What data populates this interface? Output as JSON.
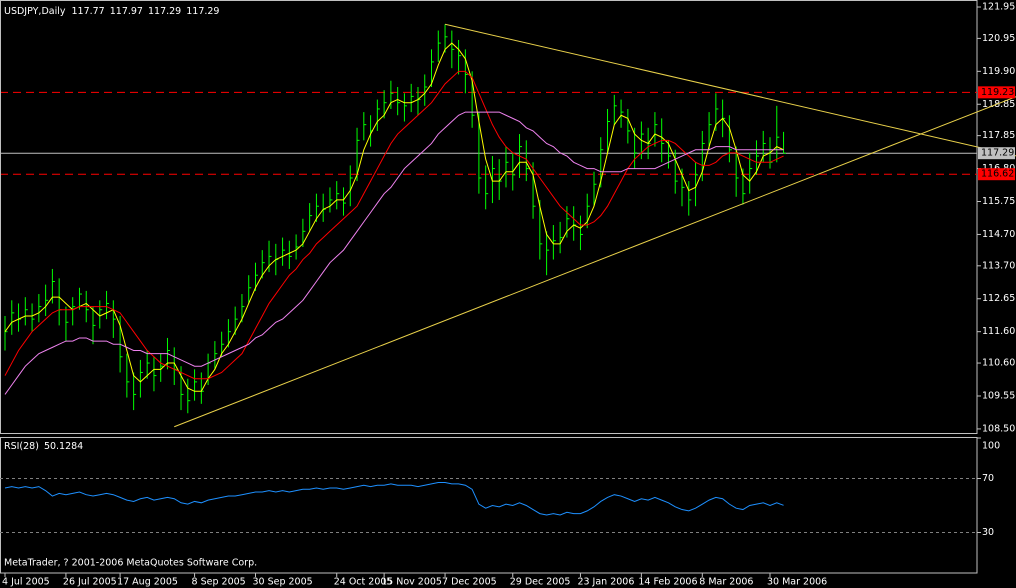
{
  "chart_data": {
    "type": "ohlc",
    "symbol": "USDJPY,Daily",
    "last_open": 117.77,
    "categories": [
      "4 Jul 2005",
      null,
      null,
      null,
      null,
      null,
      null,
      null,
      null,
      "26 Jul 2005",
      null,
      null,
      null,
      null,
      null,
      null,
      null,
      "17 Aug 2005",
      null,
      null,
      null,
      null,
      null,
      null,
      null,
      null,
      null,
      null,
      "8 Sep 2005",
      null,
      null,
      null,
      null,
      null,
      null,
      null,
      null,
      "30 Sep 2005",
      null,
      null,
      null,
      null,
      null,
      null,
      null,
      null,
      null,
      null,
      null,
      "24 Oct 2005",
      null,
      null,
      null,
      null,
      null,
      null,
      "15 Nov 2005",
      null,
      null,
      null,
      null,
      null,
      null,
      null,
      null,
      "7 Dec 2005",
      null,
      null,
      null,
      null,
      null,
      null,
      null,
      null,
      null,
      "29 Dec 2005",
      null,
      null,
      null,
      null,
      null,
      null,
      null,
      null,
      null,
      "23 Jan 2006",
      null,
      null,
      null,
      null,
      null,
      null,
      null,
      null,
      "14 Feb 2006",
      null,
      null,
      null,
      null,
      null,
      null,
      null,
      null,
      "8 Mar 2006",
      null,
      null,
      null,
      null,
      null,
      null,
      null,
      null,
      null,
      "30 Mar 2006",
      null,
      null
    ],
    "high": [
      112.1,
      112.6,
      112.5,
      112.7,
      112.5,
      112.8,
      113.1,
      113.6,
      113.3,
      112.4,
      112.7,
      113.0,
      112.9,
      112.4,
      112.6,
      112.9,
      112.6,
      112.1,
      110.9,
      110.3,
      110.7,
      111.0,
      110.8,
      110.9,
      111.4,
      111.1,
      110.5,
      110.1,
      110.4,
      110.3,
      110.9,
      111.3,
      111.6,
      112.0,
      112.4,
      112.8,
      113.4,
      113.8,
      114.2,
      114.5,
      114.4,
      114.6,
      114.5,
      114.7,
      115.2,
      115.7,
      116.0,
      116.0,
      116.2,
      116.4,
      116.2,
      116.9,
      118.1,
      118.6,
      118.5,
      119.0,
      119.3,
      119.6,
      119.4,
      119.2,
      119.5,
      119.4,
      119.8,
      120.6,
      121.2,
      121.4,
      121.2,
      120.9,
      120.6,
      119.9,
      118.6,
      116.9,
      117.2,
      117.1,
      117.5,
      117.3,
      117.9,
      117.7,
      117.0,
      115.8,
      114.8,
      115.0,
      115.1,
      115.6,
      115.6,
      115.3,
      116.0,
      116.7,
      117.8,
      118.7,
      119.15,
      119.0,
      118.7,
      118.1,
      118.3,
      118.1,
      118.6,
      118.4,
      117.7,
      117.4,
      116.8,
      116.4,
      117.0,
      118.0,
      118.6,
      119.2,
      119.0,
      118.5,
      117.5,
      116.8,
      117.3,
      117.7,
      118.0,
      117.8,
      118.8,
      117.97
    ],
    "low": [
      111.0,
      111.5,
      111.6,
      111.8,
      111.6,
      111.9,
      112.1,
      112.5,
      111.8,
      111.3,
      111.8,
      112.3,
      111.9,
      111.2,
      111.7,
      112.0,
      111.4,
      110.3,
      109.5,
      109.1,
      109.5,
      110.1,
      109.7,
      110.0,
      110.4,
      109.9,
      109.1,
      109.0,
      109.4,
      109.3,
      109.9,
      110.4,
      110.8,
      111.1,
      111.5,
      111.9,
      112.5,
      112.9,
      113.3,
      113.5,
      113.4,
      113.7,
      113.6,
      113.9,
      114.3,
      114.8,
      115.1,
      115.1,
      115.4,
      115.5,
      115.3,
      115.6,
      116.4,
      117.7,
      117.5,
      118.0,
      118.4,
      118.7,
      118.5,
      118.3,
      118.6,
      118.5,
      118.8,
      119.4,
      120.2,
      120.5,
      120.0,
      119.8,
      119.2,
      118.1,
      116.0,
      115.5,
      115.7,
      115.8,
      116.2,
      116.1,
      116.5,
      116.4,
      115.2,
      113.9,
      113.4,
      113.9,
      114.1,
      114.6,
      114.5,
      114.2,
      114.9,
      115.6,
      116.2,
      117.3,
      118.2,
      118.1,
      117.6,
      116.8,
      117.1,
      117.1,
      117.5,
      117.0,
      116.8,
      116.0,
      115.6,
      115.3,
      115.6,
      116.4,
      117.4,
      118.0,
      117.8,
      117.0,
      115.9,
      115.65,
      116.0,
      116.6,
      117.0,
      116.8,
      117.0,
      117.29
    ],
    "close": [
      111.6,
      112.2,
      112.0,
      112.3,
      112.0,
      112.4,
      112.6,
      113.2,
      112.3,
      111.9,
      112.4,
      112.8,
      112.3,
      111.8,
      112.3,
      112.5,
      112.0,
      110.8,
      110.0,
      109.6,
      110.3,
      110.6,
      110.2,
      110.5,
      111.0,
      110.4,
      109.6,
      109.4,
      110.0,
      109.7,
      110.6,
      110.9,
      111.2,
      111.6,
      112.0,
      112.4,
      113.0,
      113.4,
      113.8,
      114.0,
      113.9,
      114.2,
      114.0,
      114.3,
      114.8,
      115.3,
      115.6,
      115.5,
      115.8,
      116.0,
      115.7,
      116.5,
      117.7,
      118.2,
      118.0,
      118.7,
      118.9,
      119.2,
      118.9,
      118.8,
      119.1,
      119.0,
      119.4,
      120.2,
      120.8,
      121.0,
      120.6,
      120.4,
      119.8,
      118.5,
      116.5,
      116.0,
      116.8,
      116.4,
      117.0,
      116.6,
      117.5,
      116.8,
      115.6,
      114.4,
      114.2,
      114.5,
      114.6,
      115.2,
      115.0,
      114.7,
      115.6,
      116.3,
      117.4,
      118.3,
      118.8,
      118.6,
      118.0,
      117.3,
      117.9,
      117.6,
      118.2,
      117.6,
      117.2,
      116.4,
      116.2,
      115.8,
      116.6,
      117.6,
      118.2,
      118.7,
      118.4,
      117.4,
      116.5,
      116.0,
      116.8,
      117.2,
      117.6,
      117.0,
      117.8,
      117.29
    ],
    "bar_color": "#00ff00",
    "ylim": [
      108.37,
      122.11
    ],
    "yticks": [
      121.95,
      120.95,
      {
        "value": 119.9,
        "label": "119.90"
      },
      118.85,
      117.85,
      {
        "value": 116.8,
        "label": "116.80"
      },
      115.75,
      {
        "value": 114.7,
        "label": "114.70"
      },
      {
        "value": 113.7,
        "label": "113.70"
      },
      112.65,
      {
        "value": 111.6,
        "label": "111.60"
      },
      {
        "value": 110.6,
        "label": "110.60"
      },
      109.55,
      {
        "value": 108.5,
        "label": "108.50"
      }
    ],
    "moving_averages": [
      {
        "color": "#ffff00",
        "values": [
          111.6,
          111.9,
          112.0,
          112.1,
          112.1,
          112.2,
          112.4,
          112.7,
          112.7,
          112.5,
          112.3,
          112.4,
          112.5,
          112.3,
          112.1,
          112.2,
          112.3,
          111.8,
          111.0,
          110.2,
          110.0,
          110.2,
          110.4,
          110.4,
          110.6,
          110.6,
          110.2,
          109.8,
          109.7,
          109.7,
          110.1,
          110.4,
          110.9,
          111.2,
          111.6,
          112.0,
          112.5,
          113.0,
          113.4,
          113.7,
          113.9,
          114.0,
          114.1,
          114.2,
          114.4,
          114.8,
          115.2,
          115.5,
          115.6,
          115.8,
          115.8,
          116.1,
          116.6,
          117.4,
          117.9,
          118.3,
          118.5,
          118.9,
          119.0,
          118.9,
          118.9,
          119.0,
          119.2,
          119.5,
          120.1,
          120.6,
          120.8,
          120.6,
          120.3,
          119.6,
          118.3,
          117.1,
          116.4,
          116.4,
          116.7,
          116.7,
          117.0,
          117.0,
          116.6,
          115.6,
          114.7,
          114.4,
          114.4,
          114.8,
          115.0,
          114.9,
          115.1,
          115.6,
          116.4,
          117.3,
          118.2,
          118.5,
          118.4,
          117.9,
          117.7,
          117.6,
          117.9,
          117.8,
          117.6,
          117.1,
          116.6,
          116.1,
          116.2,
          116.7,
          117.5,
          118.2,
          118.4,
          118.1,
          117.4,
          116.6,
          116.4,
          116.7,
          117.2,
          117.3,
          117.5,
          117.4
        ]
      },
      {
        "color": "#ff0000",
        "values": [
          110.2,
          110.6,
          111.0,
          111.3,
          111.6,
          111.8,
          112.0,
          112.2,
          112.3,
          112.3,
          112.3,
          112.4,
          112.4,
          112.4,
          112.4,
          112.4,
          112.3,
          112.2,
          111.9,
          111.6,
          111.3,
          111.0,
          110.8,
          110.6,
          110.5,
          110.4,
          110.3,
          110.2,
          110.1,
          110.1,
          110.1,
          110.2,
          110.3,
          110.5,
          110.7,
          110.9,
          111.3,
          111.7,
          112.1,
          112.5,
          112.8,
          113.1,
          113.4,
          113.6,
          113.9,
          114.1,
          114.4,
          114.6,
          114.8,
          115.0,
          115.2,
          115.4,
          115.6,
          116.0,
          116.4,
          116.8,
          117.2,
          117.6,
          117.9,
          118.1,
          118.3,
          118.5,
          118.7,
          118.9,
          119.2,
          119.5,
          119.7,
          119.9,
          119.9,
          119.7,
          119.2,
          118.7,
          118.2,
          117.8,
          117.5,
          117.3,
          117.2,
          117.1,
          116.8,
          116.5,
          116.2,
          115.9,
          115.6,
          115.4,
          115.2,
          115.0,
          115.0,
          115.1,
          115.3,
          115.6,
          116.0,
          116.4,
          116.8,
          117.1,
          117.3,
          117.5,
          117.6,
          117.7,
          117.7,
          117.6,
          117.4,
          117.2,
          117.0,
          116.9,
          116.9,
          117.0,
          117.2,
          117.3,
          117.3,
          117.2,
          117.1,
          117.0,
          117.0,
          117.0,
          117.1,
          117.2
        ]
      },
      {
        "color": "#ee82ee",
        "values": [
          109.6,
          109.9,
          110.2,
          110.5,
          110.7,
          110.9,
          111.0,
          111.1,
          111.2,
          111.3,
          111.3,
          111.4,
          111.4,
          111.3,
          111.3,
          111.3,
          111.2,
          111.2,
          111.1,
          111.0,
          111.0,
          110.9,
          110.9,
          110.9,
          110.9,
          110.8,
          110.7,
          110.6,
          110.5,
          110.5,
          110.6,
          110.7,
          110.8,
          110.9,
          111.0,
          111.1,
          111.2,
          111.4,
          111.5,
          111.7,
          111.9,
          112.0,
          112.2,
          112.4,
          112.6,
          112.9,
          113.2,
          113.5,
          113.8,
          114.0,
          114.2,
          114.5,
          114.8,
          115.1,
          115.4,
          115.7,
          116.0,
          116.2,
          116.5,
          116.8,
          117.0,
          117.2,
          117.4,
          117.6,
          117.9,
          118.1,
          118.3,
          118.5,
          118.6,
          118.6,
          118.6,
          118.6,
          118.6,
          118.6,
          118.5,
          118.4,
          118.3,
          118.1,
          118.0,
          117.8,
          117.6,
          117.5,
          117.3,
          117.2,
          117.0,
          116.9,
          116.8,
          116.8,
          116.7,
          116.7,
          116.7,
          116.7,
          116.8,
          116.8,
          116.8,
          116.8,
          116.8,
          116.9,
          117.0,
          117.1,
          117.2,
          117.3,
          117.4,
          117.4,
          117.4,
          117.5,
          117.5,
          117.5,
          117.4,
          117.4,
          117.4,
          117.4,
          117.4,
          117.4,
          117.4,
          117.4
        ]
      }
    ],
    "levels": [
      {
        "value": 119.23,
        "color": "#ff0000"
      },
      {
        "value": 116.62,
        "color": "#ff0000"
      }
    ],
    "trendlines": [
      {
        "color": "#e8d04a",
        "x": [
          65,
          106
        ],
        "y": [
          121.4,
          119.36
        ]
      },
      {
        "color": "#e8d04a",
        "x": [
          25,
          79
        ],
        "y": [
          108.57,
          113.14
        ]
      }
    ],
    "rsi": {
      "label": "RSI(28)",
      "color": "#1e90ff",
      "values": [
        63,
        64,
        63,
        64,
        63,
        64,
        61,
        57,
        59,
        58,
        59,
        60,
        58,
        57,
        58,
        59,
        58,
        56,
        54,
        53,
        55,
        56,
        54,
        55,
        56,
        55,
        52,
        51,
        53,
        52,
        54,
        55,
        56,
        57,
        57,
        58,
        59,
        60,
        60,
        61,
        60,
        61,
        60,
        61,
        62,
        62,
        63,
        62,
        63,
        63,
        62,
        63,
        64,
        65,
        64,
        65,
        65,
        66,
        65,
        65,
        65,
        64,
        65,
        66,
        67,
        67,
        66,
        66,
        65,
        62,
        51,
        48,
        50,
        49,
        51,
        50,
        52,
        50,
        47,
        44,
        43,
        44,
        43,
        45,
        44,
        44,
        46,
        49,
        53,
        56,
        58,
        57,
        55,
        53,
        55,
        54,
        56,
        54,
        52,
        49,
        47,
        46,
        48,
        51,
        54,
        56,
        55,
        51,
        48,
        47,
        50,
        51,
        52,
        50,
        52,
        50.1284
      ],
      "ylim": [
        0,
        100
      ],
      "yticks": [
        100,
        70,
        30
      ]
    },
    "footer": "MetaTrader, ? 2001-2006 MetaQuotes Software Corp."
  }
}
